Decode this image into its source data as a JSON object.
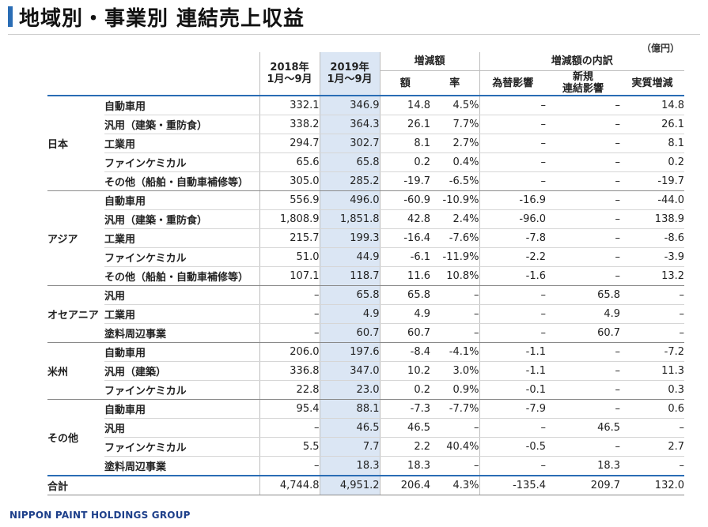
{
  "title": "地域別・事業別 連結売上収益",
  "unit": "（億円）",
  "headers": {
    "y2018": "2018年\n1月～9月",
    "y2019": "2019年\n1月～9月",
    "change_group": "増減額",
    "change_amount": "額",
    "change_rate": "率",
    "breakdown_group": "増減額の内訳",
    "fx_impact": "為替影響",
    "new_consol": "新規\n連結影響",
    "real_change": "実質増減"
  },
  "groups": [
    {
      "region": "日本",
      "rows": [
        {
          "category": "自動車用",
          "values": [
            "332.1",
            "346.9",
            "14.8",
            "4.5%",
            "–",
            "–",
            "14.8"
          ]
        },
        {
          "category": "汎用（建築・重防食）",
          "values": [
            "338.2",
            "364.3",
            "26.1",
            "7.7%",
            "–",
            "–",
            "26.1"
          ]
        },
        {
          "category": "工業用",
          "values": [
            "294.7",
            "302.7",
            "8.1",
            "2.7%",
            "–",
            "–",
            "8.1"
          ]
        },
        {
          "category": "ファインケミカル",
          "values": [
            "65.6",
            "65.8",
            "0.2",
            "0.4%",
            "–",
            "–",
            "0.2"
          ]
        },
        {
          "category": "その他（船舶・自動車補修等）",
          "values": [
            "305.0",
            "285.2",
            "-19.7",
            "-6.5%",
            "–",
            "–",
            "-19.7"
          ]
        }
      ]
    },
    {
      "region": "アジア",
      "rows": [
        {
          "category": "自動車用",
          "values": [
            "556.9",
            "496.0",
            "-60.9",
            "-10.9%",
            "-16.9",
            "–",
            "-44.0"
          ]
        },
        {
          "category": "汎用（建築・重防食）",
          "values": [
            "1,808.9",
            "1,851.8",
            "42.8",
            "2.4%",
            "-96.0",
            "–",
            "138.9"
          ]
        },
        {
          "category": "工業用",
          "values": [
            "215.7",
            "199.3",
            "-16.4",
            "-7.6%",
            "-7.8",
            "–",
            "-8.6"
          ]
        },
        {
          "category": "ファインケミカル",
          "values": [
            "51.0",
            "44.9",
            "-6.1",
            "-11.9%",
            "-2.2",
            "–",
            "-3.9"
          ]
        },
        {
          "category": "その他（船舶・自動車補修等）",
          "values": [
            "107.1",
            "118.7",
            "11.6",
            "10.8%",
            "-1.6",
            "–",
            "13.2"
          ]
        }
      ]
    },
    {
      "region": "オセアニア",
      "rows": [
        {
          "category": "汎用",
          "values": [
            "–",
            "65.8",
            "65.8",
            "–",
            "–",
            "65.8",
            "–"
          ]
        },
        {
          "category": "工業用",
          "values": [
            "–",
            "4.9",
            "4.9",
            "–",
            "–",
            "4.9",
            "–"
          ]
        },
        {
          "category": "塗料周辺事業",
          "values": [
            "–",
            "60.7",
            "60.7",
            "–",
            "–",
            "60.7",
            "–"
          ]
        }
      ]
    },
    {
      "region": "米州",
      "rows": [
        {
          "category": "自動車用",
          "values": [
            "206.0",
            "197.6",
            "-8.4",
            "-4.1%",
            "-1.1",
            "–",
            "-7.2"
          ]
        },
        {
          "category": "汎用（建築）",
          "values": [
            "336.8",
            "347.0",
            "10.2",
            "3.0%",
            "-1.1",
            "–",
            "11.3"
          ]
        },
        {
          "category": "ファインケミカル",
          "values": [
            "22.8",
            "23.0",
            "0.2",
            "0.9%",
            "-0.1",
            "–",
            "0.3"
          ]
        }
      ]
    },
    {
      "region": "その他",
      "rows": [
        {
          "category": "自動車用",
          "values": [
            "95.4",
            "88.1",
            "-7.3",
            "-7.7%",
            "-7.9",
            "–",
            "0.6"
          ]
        },
        {
          "category": "汎用",
          "values": [
            "–",
            "46.5",
            "46.5",
            "–",
            "–",
            "46.5",
            "–"
          ]
        },
        {
          "category": "ファインケミカル",
          "values": [
            "5.5",
            "7.7",
            "2.2",
            "40.4%",
            "-0.5",
            "–",
            "2.7"
          ]
        },
        {
          "category": "塗料周辺事業",
          "values": [
            "–",
            "18.3",
            "18.3",
            "–",
            "–",
            "18.3",
            "–"
          ]
        }
      ]
    }
  ],
  "total": {
    "label": "合計",
    "values": [
      "4,744.8",
      "4,951.2",
      "206.4",
      "4.3%",
      "-135.4",
      "209.7",
      "132.0"
    ]
  },
  "footer": "NIPPON PAINT HOLDINGS GROUP",
  "colors": {
    "accent": "#2a6db5",
    "highlight_col": "#dbe6f4",
    "logo": "#1d3f8a"
  }
}
